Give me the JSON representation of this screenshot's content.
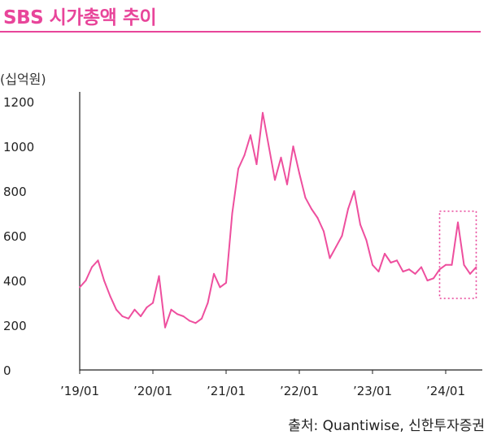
{
  "title": "SBS 시가총액 추이",
  "unit_label": "(십억원)",
  "source": "출처: Quantiwise, 신한투자증권",
  "colors": {
    "accent": "#e8459a",
    "line": "#ee4f9e",
    "axis": "#222222"
  },
  "chart_data": {
    "type": "line",
    "title": "SBS 시가총액 추이",
    "ylabel": "(십억원)",
    "ylim": [
      0,
      1200
    ],
    "yticks": [
      0,
      200,
      400,
      600,
      800,
      1000,
      1200
    ],
    "xlim": [
      "2019-01",
      "2024-07"
    ],
    "xticks": [
      {
        "label": "’19/01",
        "x": "2019-01"
      },
      {
        "label": "’20/01",
        "x": "2020-01"
      },
      {
        "label": "’21/01",
        "x": "2021-01"
      },
      {
        "label": "’22/01",
        "x": "2022-01"
      },
      {
        "label": "’23/01",
        "x": "2023-01"
      },
      {
        "label": "’24/01",
        "x": "2024-01"
      }
    ],
    "grid": false,
    "highlight": {
      "x_from": "2023-12",
      "x_to": "2024-06",
      "y_from": 320,
      "y_to": 710
    },
    "x": [
      "2019-01",
      "2019-02",
      "2019-03",
      "2019-04",
      "2019-05",
      "2019-06",
      "2019-07",
      "2019-08",
      "2019-09",
      "2019-10",
      "2019-11",
      "2019-12",
      "2020-01",
      "2020-02",
      "2020-03",
      "2020-04",
      "2020-05",
      "2020-06",
      "2020-07",
      "2020-08",
      "2020-09",
      "2020-10",
      "2020-11",
      "2020-12",
      "2021-01",
      "2021-02",
      "2021-03",
      "2021-04",
      "2021-05",
      "2021-06",
      "2021-07",
      "2021-08",
      "2021-09",
      "2021-10",
      "2021-11",
      "2021-12",
      "2022-01",
      "2022-02",
      "2022-03",
      "2022-04",
      "2022-05",
      "2022-06",
      "2022-07",
      "2022-08",
      "2022-09",
      "2022-10",
      "2022-11",
      "2022-12",
      "2023-01",
      "2023-02",
      "2023-03",
      "2023-04",
      "2023-05",
      "2023-06",
      "2023-07",
      "2023-08",
      "2023-09",
      "2023-10",
      "2023-11",
      "2023-12",
      "2024-01",
      "2024-02",
      "2024-03",
      "2024-04",
      "2024-05",
      "2024-06"
    ],
    "series": [
      {
        "values": [
          370,
          400,
          460,
          490,
          400,
          330,
          270,
          240,
          230,
          270,
          240,
          280,
          300,
          420,
          190,
          270,
          250,
          240,
          220,
          210,
          230,
          300,
          430,
          370,
          390,
          700,
          900,
          960,
          1050,
          920,
          1150,
          1000,
          850,
          950,
          830,
          1000,
          880,
          770,
          720,
          680,
          620,
          500,
          550,
          600,
          720,
          800,
          650,
          580,
          470,
          440,
          520,
          480,
          490,
          440,
          450,
          430,
          460,
          400,
          410,
          450,
          470,
          470,
          660,
          470,
          430,
          460
        ]
      }
    ]
  }
}
